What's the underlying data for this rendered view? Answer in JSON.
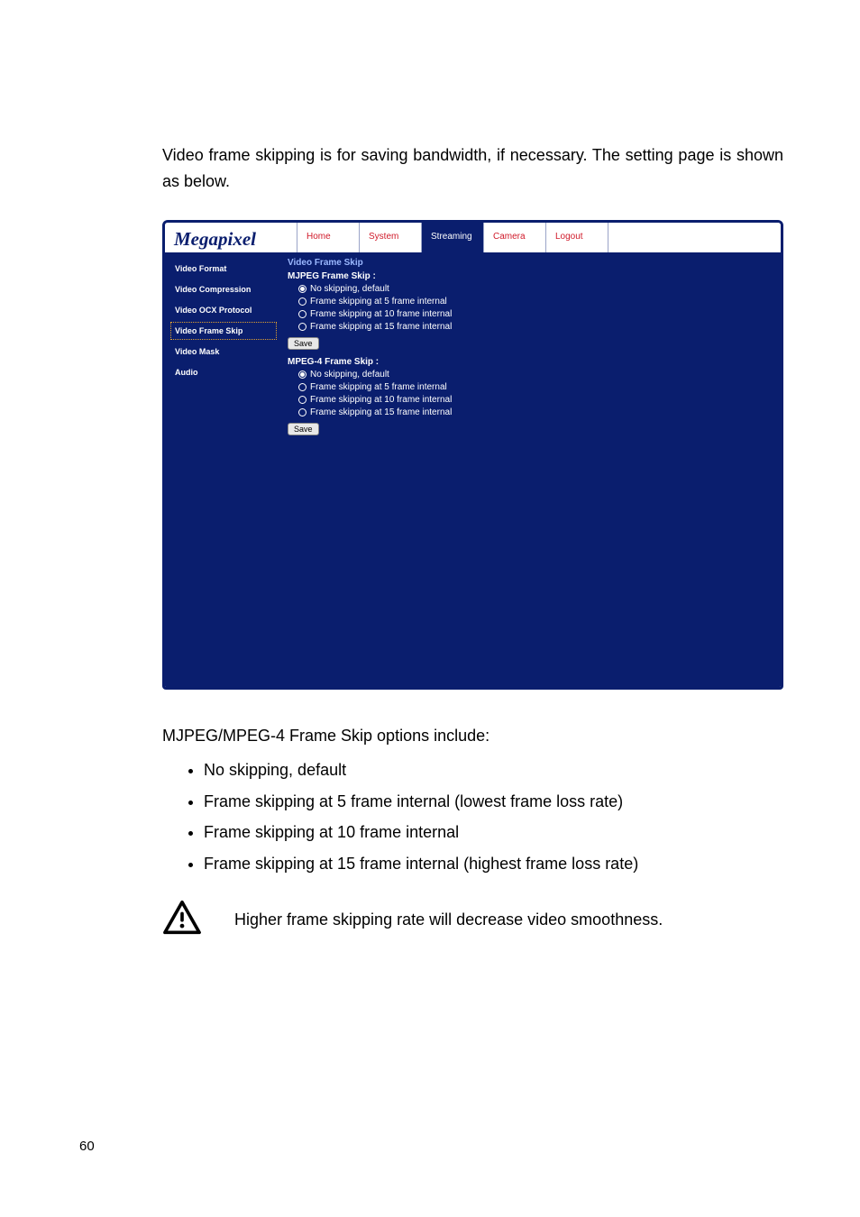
{
  "intro": "Video frame skipping is for saving bandwidth, if necessary. The setting page is shown as below.",
  "logo": "Megapixel",
  "tabs": [
    {
      "label": "Home",
      "active": false
    },
    {
      "label": "System",
      "active": false
    },
    {
      "label": "Streaming",
      "active": true
    },
    {
      "label": "Camera",
      "active": false
    },
    {
      "label": "Logout",
      "active": false
    }
  ],
  "side": [
    {
      "label": "Video Format",
      "active": false
    },
    {
      "label": "Video Compression",
      "active": false
    },
    {
      "label": "Video OCX Protocol",
      "active": false
    },
    {
      "label": "Video Frame Skip",
      "active": true
    },
    {
      "label": "Video Mask",
      "active": false
    },
    {
      "label": "Audio",
      "active": false
    }
  ],
  "main_title": "Video Frame Skip",
  "groups": [
    {
      "title": "MJPEG Frame Skip :",
      "options": [
        {
          "label": "No skipping, default",
          "selected": true
        },
        {
          "label": "Frame skipping at 5 frame internal",
          "selected": false
        },
        {
          "label": "Frame skipping at 10 frame internal",
          "selected": false
        },
        {
          "label": "Frame skipping at 15 frame internal",
          "selected": false
        }
      ],
      "save": "Save"
    },
    {
      "title": "MPEG-4 Frame Skip :",
      "options": [
        {
          "label": "No skipping, default",
          "selected": true
        },
        {
          "label": "Frame skipping at 5 frame internal",
          "selected": false
        },
        {
          "label": "Frame skipping at 10 frame internal",
          "selected": false
        },
        {
          "label": "Frame skipping at 15 frame internal",
          "selected": false
        }
      ],
      "save": "Save"
    }
  ],
  "below_title": "MJPEG/MPEG-4 Frame Skip options include:",
  "bullets": [
    "No skipping, default",
    "Frame skipping at 5 frame internal (lowest frame loss rate)",
    "Frame skipping at 10 frame internal",
    "Frame skipping at 15 frame internal (highest frame loss rate)"
  ],
  "note": "Higher frame skipping rate will decrease video smoothness.",
  "page_number": "60",
  "colors": {
    "brand": "#0a1e6e",
    "tab_text": "#d01a2a",
    "subtitle": "#9bb8ff"
  }
}
